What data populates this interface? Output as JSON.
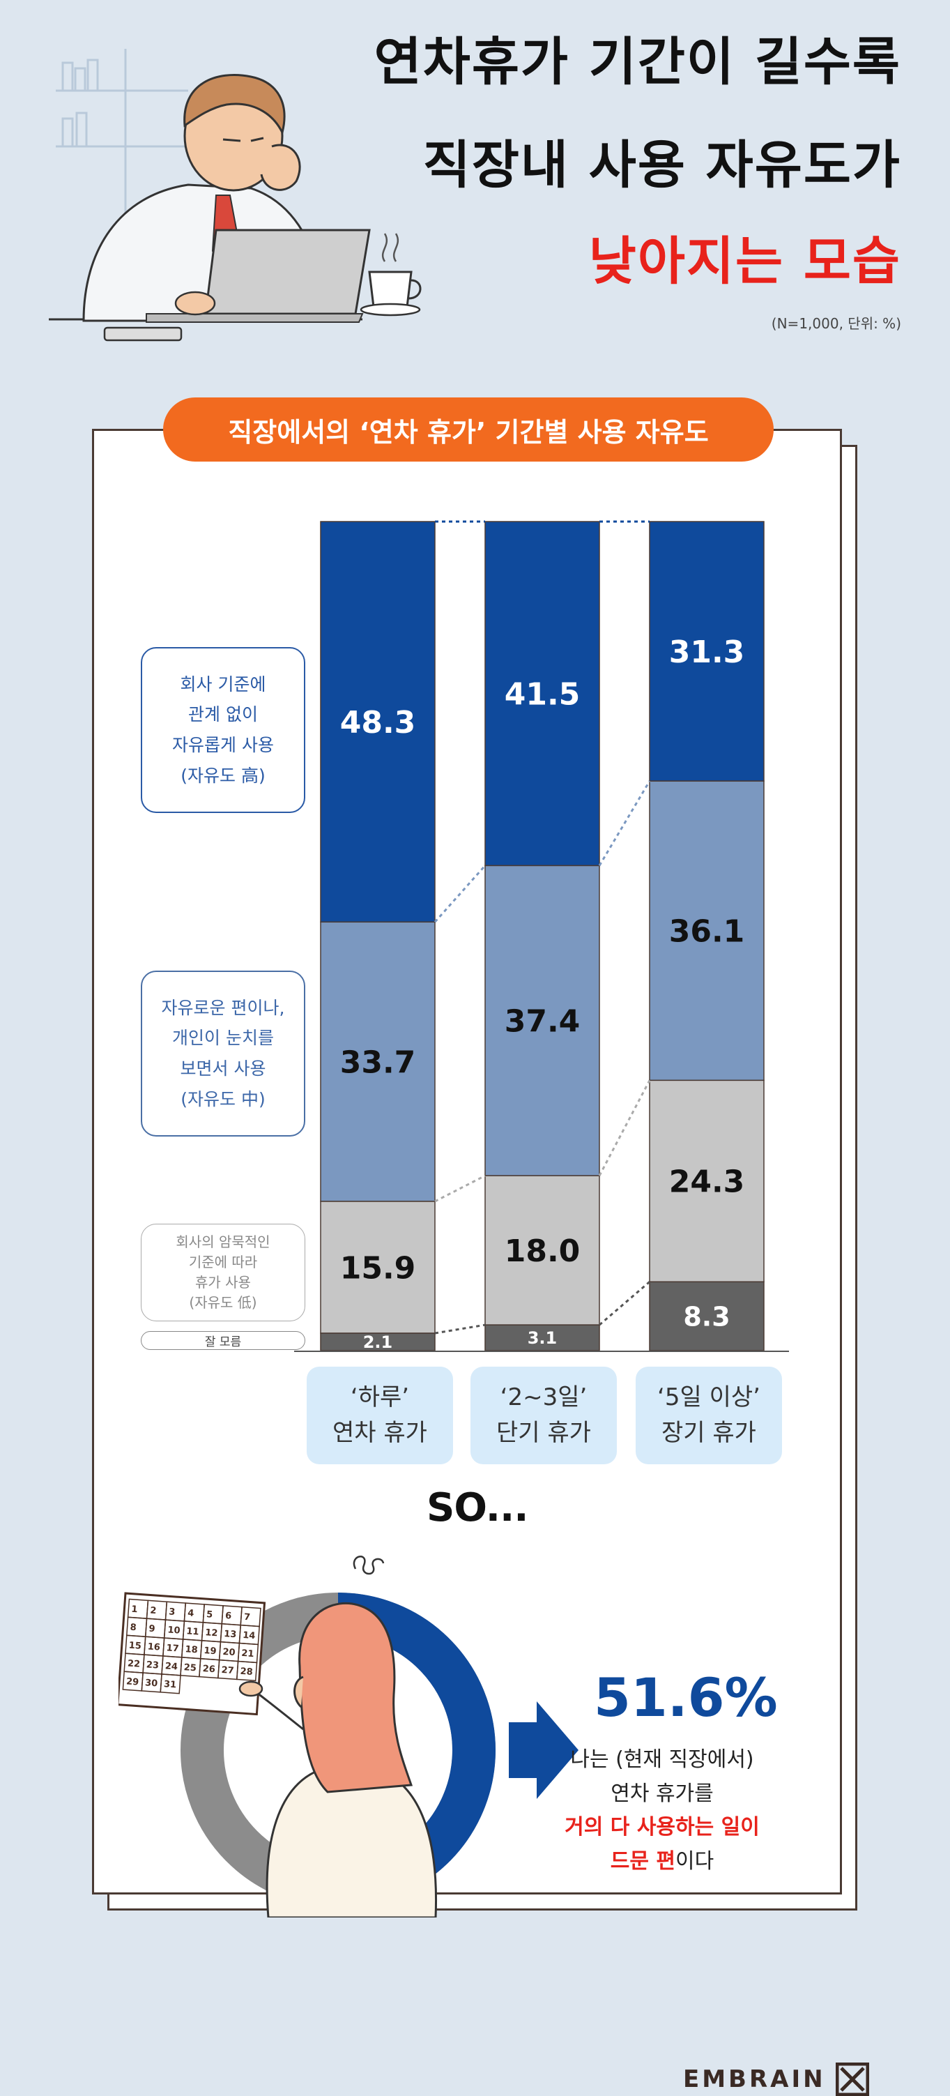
{
  "title": {
    "line1": "연차휴가 기간이 길수록",
    "line2": "직장내 사용 자유도가",
    "line3": "낮아지는 모습"
  },
  "source_note": "(N=1,000, 단위: %)",
  "section_pill": "직장에서의 ‘연차 휴가’ 기간별 사용 자유도",
  "legend": [
    {
      "lines": [
        "회사 기준에",
        "관계 없이",
        "자유롭게 사용",
        "(자유도 高)"
      ]
    },
    {
      "lines": [
        "자유로운 편이나,",
        "개인이 눈치를",
        "보면서 사용",
        "(자유도 中)"
      ]
    },
    {
      "lines": [
        "회사의 암묵적인",
        "기준에 따라",
        "휴가 사용",
        "(자유도 低)"
      ]
    },
    {
      "lines": [
        "잘 모름"
      ]
    }
  ],
  "categories": [
    {
      "line1": "‘하루’",
      "line2": "연차 휴가"
    },
    {
      "line1": "‘2~3일’",
      "line2": "단기 휴가"
    },
    {
      "line1": "‘5일 이상’",
      "line2": "장기 휴가"
    }
  ],
  "chart_data": {
    "type": "bar",
    "stacked": true,
    "categories": [
      "‘하루’ 연차 휴가",
      "‘2~3일’ 단기 휴가",
      "‘5일 이상’ 장기 휴가"
    ],
    "series": [
      {
        "values": [
          48.3,
          41.5,
          31.3
        ],
        "color": "#0f4a9c"
      },
      {
        "values": [
          33.7,
          37.4,
          36.1
        ],
        "color": "#7b98c0"
      },
      {
        "values": [
          15.9,
          18.0,
          24.3
        ],
        "color": "#c6c6c6"
      },
      {
        "values": [
          2.1,
          3.1,
          8.3
        ],
        "color": "#626262"
      }
    ],
    "labels": [
      [
        "48.3",
        "33.7",
        "15.9",
        "2.1"
      ],
      [
        "41.5",
        "37.4",
        "18.0",
        "3.1"
      ],
      [
        "31.3",
        "36.1",
        "24.3",
        "8.3"
      ]
    ],
    "ylim": [
      0,
      100
    ]
  },
  "so_text": "SO...",
  "summary_pct": "51.6%",
  "summary": {
    "line1": "나는 (현재 직장에서)",
    "line2": "연차 휴가를",
    "line3_red": "거의 다 사용하는 일이",
    "line4_red": "드문 편",
    "line4_tail": "이다"
  },
  "calendar_days": [
    "1",
    "2",
    "3",
    "4",
    "5",
    "6",
    "7",
    "8",
    "9",
    "10",
    "11",
    "12",
    "13",
    "14",
    "15",
    "16",
    "17",
    "18",
    "19",
    "20",
    "21",
    "22",
    "23",
    "24",
    "25",
    "26",
    "27",
    "28",
    "29",
    "30",
    "31"
  ],
  "brand": "EMBRAIN",
  "colors": {
    "accent_red": "#e8221b",
    "pill_orange": "#f26a1f",
    "navy": "#0f4a9c",
    "mid_blue": "#7b98c0",
    "light_gray": "#c6c6c6",
    "dark_gray": "#626262"
  }
}
